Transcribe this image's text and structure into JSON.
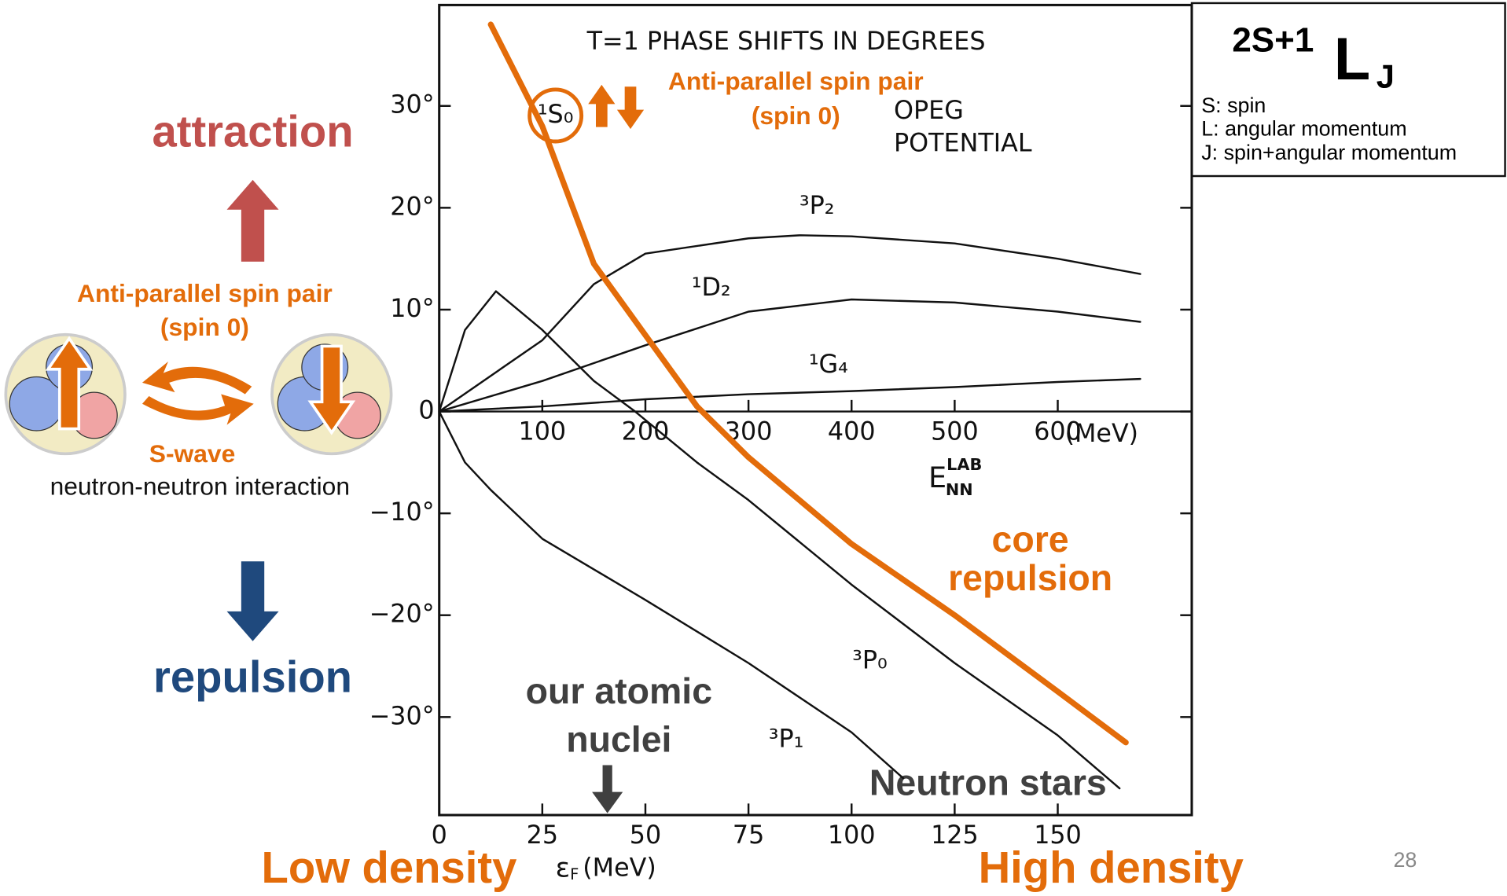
{
  "slide": {
    "attraction": "attraction",
    "repulsion": "repulsion",
    "pair_label": [
      "Anti-parallel spin pair",
      "(spin 0)"
    ],
    "s_wave": "S-wave",
    "interaction": "neutron-neutron interaction",
    "notation": {
      "superscript": "2S+1",
      "letter": "L",
      "subscript": "J",
      "lines": [
        "S: spin",
        "L: angular momentum",
        "J: spin+angular momentum"
      ]
    },
    "density": {
      "low": "Low density",
      "high": "High density"
    },
    "page_number": "28"
  },
  "chart_data": {
    "type": "line",
    "title": "T=1 PHASE SHIFTS IN DEGREES",
    "potential": [
      "OPEG",
      "POTENTIAL"
    ],
    "xlabel": {
      "base": "E",
      "superscript": "LAB",
      "subscript": "NN"
    },
    "xunit": "(MeV)",
    "x2label": {
      "base": "ε",
      "subscript": "F",
      "unit": "(MeV)"
    },
    "xlim": [
      0,
      730
    ],
    "ylim": [
      -40,
      40
    ],
    "x2lim": [
      0,
      182.5
    ],
    "xticks": [
      100,
      200,
      300,
      400,
      500,
      600
    ],
    "x2ticks": [
      0,
      25,
      50,
      75,
      100,
      125,
      150
    ],
    "yticks": [
      {
        "value": 30,
        "label": "30°"
      },
      {
        "value": 20,
        "label": "20°"
      },
      {
        "value": 10,
        "label": "10°"
      },
      0,
      {
        "value": -10,
        "label": "−10°"
      },
      {
        "value": -20,
        "label": "−20°"
      },
      {
        "value": -30,
        "label": "−30°"
      }
    ],
    "series": [
      {
        "name": "³P₂",
        "color": "#111111",
        "x": [
          0,
          100,
          150,
          200,
          300,
          350,
          400,
          500,
          600,
          680
        ],
        "values": [
          0,
          7,
          12.5,
          15.5,
          17,
          17.3,
          17.2,
          16.5,
          15,
          13.5
        ]
      },
      {
        "name": "¹D₂",
        "color": "#111111",
        "x": [
          0,
          100,
          200,
          300,
          400,
          500,
          600,
          680
        ],
        "values": [
          0,
          3,
          6.5,
          9.8,
          11,
          10.7,
          9.8,
          8.8
        ]
      },
      {
        "name": "¹G₄",
        "color": "#111111",
        "x": [
          0,
          100,
          200,
          300,
          400,
          500,
          600,
          680
        ],
        "values": [
          0,
          0.5,
          1.2,
          1.7,
          2,
          2.4,
          2.9,
          3.2
        ]
      },
      {
        "name": "³P₀",
        "color": "#111111",
        "x": [
          0,
          25,
          55,
          100,
          150,
          190,
          250,
          300,
          400,
          500,
          600,
          660
        ],
        "values": [
          0,
          8,
          11.8,
          8,
          3,
          0,
          -5,
          -8.7,
          -17,
          -24.7,
          -31.8,
          -37
        ]
      },
      {
        "name": "³P₁",
        "color": "#111111",
        "x": [
          0,
          25,
          50,
          100,
          200,
          300,
          400,
          450
        ],
        "values": [
          0,
          -5,
          -7.7,
          -12.5,
          -18.5,
          -24.7,
          -31.5,
          -36
        ]
      },
      {
        "name": "¹S₀",
        "color": "#e36c0a",
        "x": [
          50,
          100,
          150,
          200,
          250,
          300,
          400,
          500,
          600,
          666
        ],
        "values": [
          38,
          28,
          14.5,
          7.5,
          0.5,
          -4.5,
          -13,
          -20,
          -27.5,
          -32.5
        ]
      }
    ],
    "annotations": {
      "spin_pair": [
        "Anti-parallel spin pair",
        "(spin 0)"
      ],
      "core": [
        "core",
        "repulsion"
      ],
      "nuclei": [
        "our atomic",
        "nuclei"
      ],
      "stars": "Neutron stars"
    }
  }
}
